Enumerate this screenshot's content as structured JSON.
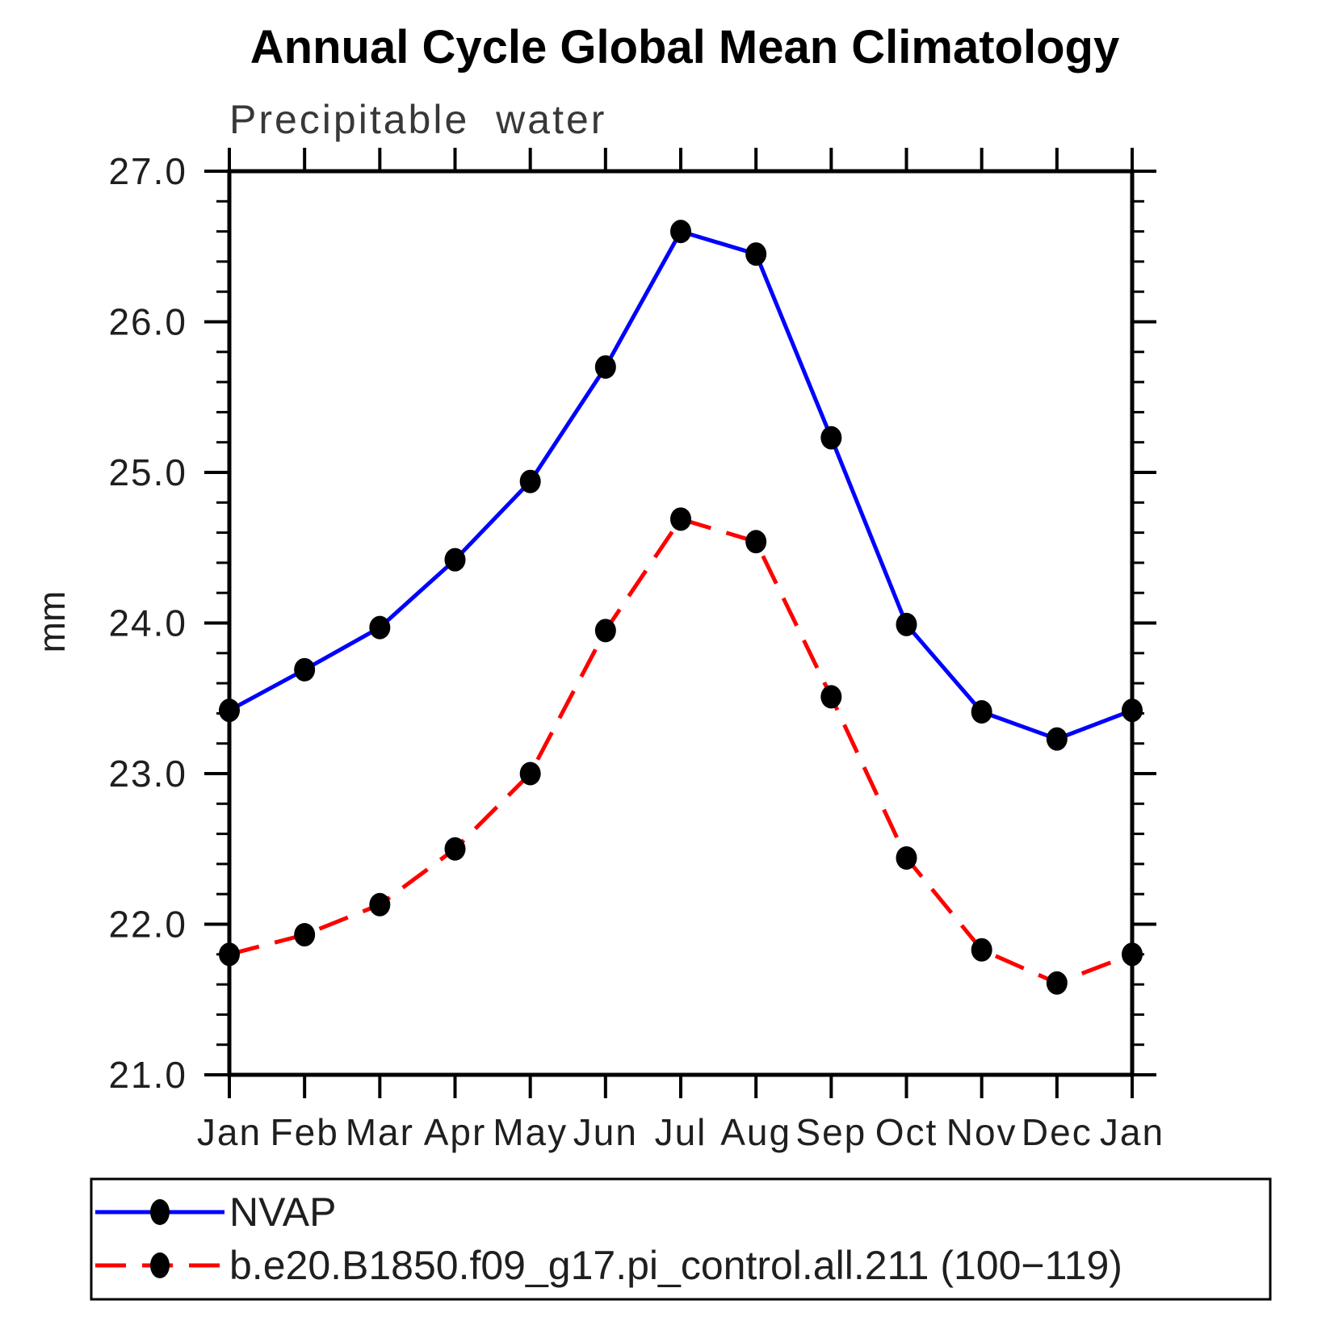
{
  "figure": {
    "title": "Annual Cycle Global Mean Climatology",
    "subtitle": "Precipitable water",
    "ylabel": "mm"
  },
  "chart_data": {
    "type": "line",
    "title": "Annual Cycle Global Mean Climatology",
    "subtitle": "Precipitable water",
    "xlabel": "",
    "ylabel": "mm",
    "categories": [
      "Jan",
      "Feb",
      "Mar",
      "Apr",
      "May",
      "Jun",
      "Jul",
      "Aug",
      "Sep",
      "Oct",
      "Nov",
      "Dec",
      "Jan"
    ],
    "series": [
      {
        "name": "NVAP",
        "color": "#0000ff",
        "line_style": "solid",
        "marker": "filled-circle",
        "marker_color": "#000000",
        "values": [
          23.42,
          23.69,
          23.97,
          24.42,
          24.94,
          25.7,
          26.6,
          26.45,
          25.23,
          23.99,
          23.41,
          23.23,
          23.42
        ]
      },
      {
        "name": "b.e20.B1850.f09_g17.pi_control.all.211 (100−119)",
        "color": "#ff0000",
        "line_style": "dashed",
        "marker": "filled-circle",
        "marker_color": "#000000",
        "values": [
          21.8,
          21.93,
          22.13,
          22.5,
          23.0,
          23.95,
          24.69,
          24.54,
          23.51,
          22.44,
          21.83,
          21.61,
          21.8
        ]
      }
    ],
    "ylim": [
      21.0,
      27.0
    ],
    "yticks": [
      21.0,
      22.0,
      23.0,
      24.0,
      25.0,
      26.0,
      27.0
    ],
    "ytick_labels": [
      "21.0",
      "22.0",
      "23.0",
      "24.0",
      "25.0",
      "26.0",
      "27.0"
    ],
    "y_minor_tick_step": 0.2,
    "grid": false,
    "legend_position": "bottom-box"
  },
  "legend": {
    "entries": [
      {
        "label": "NVAP"
      },
      {
        "label": "b.e20.B1850.f09_g17.pi_control.all.211 (100−119)"
      }
    ]
  }
}
